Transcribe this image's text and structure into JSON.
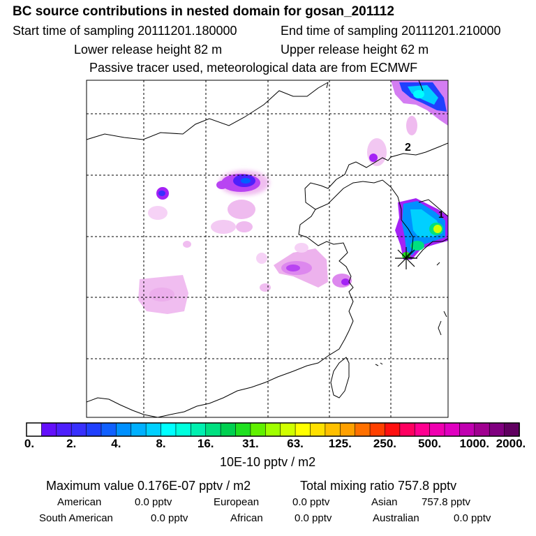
{
  "header": {
    "title": "BC  source contributions in nested domain for gosan_201112",
    "start_time": "Start time of sampling 20111201.180000",
    "end_time": "End time of sampling 20111201.210000",
    "lower_height": "Lower release height   82 m",
    "upper_height": "Upper release height   62 m",
    "note": "Passive tracer used, meteorological data are from ECMWF"
  },
  "map": {
    "markers": [
      "1",
      "2"
    ]
  },
  "colorbar": {
    "ticks": [
      "0.",
      "2.",
      "4.",
      "8.",
      "16.",
      "31.",
      "63.",
      "125.",
      "250.",
      "500.",
      "1000.",
      "2000."
    ],
    "unit": "10E-10 pptv / m2",
    "colors": [
      "#ffffff",
      "#fbe8fb",
      "#f6d2f6",
      "#f0bdf0",
      "#ebaaeb",
      "#dd88ee",
      "#cc66f0",
      "#b844f2",
      "#a422f5",
      "#9000f8",
      "#7a00fa",
      "#6410fb",
      "#4e20fc",
      "#3830fd",
      "#2040fe",
      "#1060ff",
      "#0090ff",
      "#00b0ff",
      "#00d0ff",
      "#00ffff",
      "#00ffdd",
      "#00f0b0",
      "#00e080",
      "#00d050",
      "#20e020",
      "#60f000",
      "#a0ff00",
      "#d0ff00",
      "#ffff00",
      "#ffe000",
      "#ffc000",
      "#ffa000",
      "#ff7000",
      "#ff4000",
      "#ff1010",
      "#ff0060",
      "#ff0090",
      "#f000b0",
      "#e000c0",
      "#c000b0",
      "#a00090",
      "#800080",
      "#600060"
    ]
  },
  "stats": {
    "max_label": "Maximum value  0.176E-07 pptv / m2",
    "total_label": "Total mixing ratio      757.8 pptv",
    "regions": [
      {
        "name": "American",
        "value": "0.0 pptv"
      },
      {
        "name": "European",
        "value": "0.0 pptv"
      },
      {
        "name": "Asian",
        "value": "757.8 pptv"
      },
      {
        "name": "South American",
        "value": "0.0 pptv"
      },
      {
        "name": "African",
        "value": "0.0 pptv"
      },
      {
        "name": "Australian",
        "value": "0.0 pptv"
      }
    ]
  }
}
